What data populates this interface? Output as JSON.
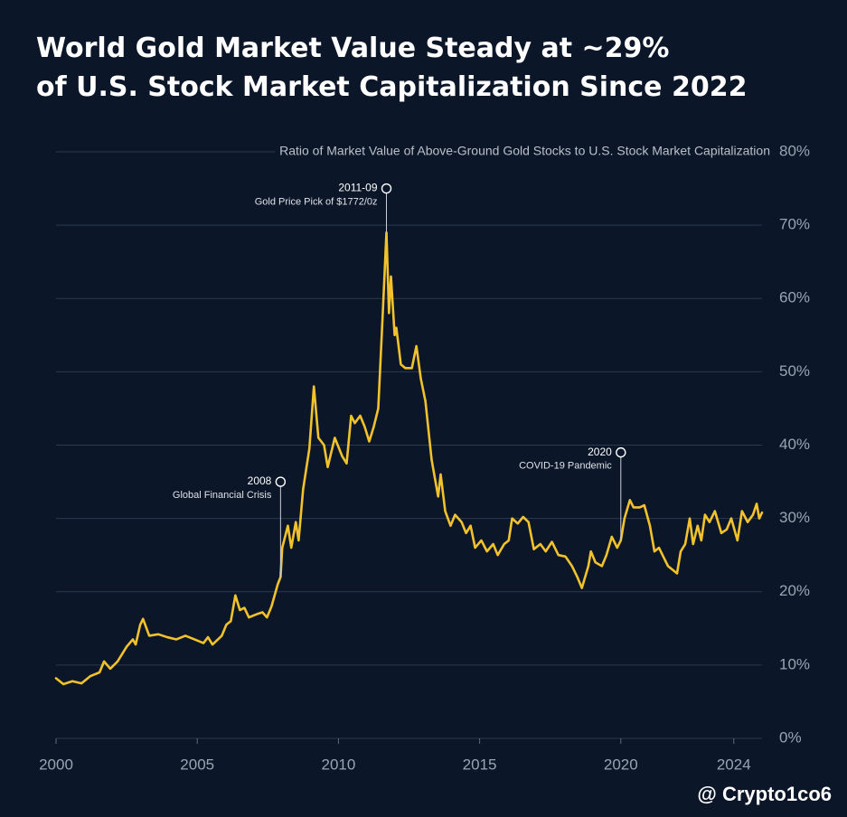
{
  "chart_data": {
    "type": "line",
    "title": [
      "World Gold Market Value Steady at ~29%",
      "of U.S. Stock Market Capitalization Since 2022"
    ],
    "subtitle": "Ratio of Market Value of Above-Ground Gold Stocks to U.S. Stock Market Capitalization",
    "color": "#f2c22c",
    "grid": true,
    "xlim": [
      2000,
      2025
    ],
    "xticks": [
      2000,
      2005,
      2010,
      2015,
      2020,
      2024
    ],
    "ylim": [
      0,
      80
    ],
    "yticks": [
      {
        "value": 0,
        "label": "0%"
      },
      {
        "value": 10,
        "label": "10%"
      },
      {
        "value": 20,
        "label": "20%"
      },
      {
        "value": 30,
        "label": "30%"
      },
      {
        "value": 40,
        "label": "40%"
      },
      {
        "value": 50,
        "label": "50%"
      },
      {
        "value": 60,
        "label": "60%"
      },
      {
        "value": 70,
        "label": "70%"
      },
      {
        "value": 80,
        "label": "80%"
      }
    ],
    "x": [
      2000.0,
      2000.26,
      2000.58,
      2000.9,
      2001.22,
      2001.54,
      2001.7,
      2001.92,
      2002.18,
      2002.5,
      2002.72,
      2002.82,
      2002.98,
      2003.08,
      2003.3,
      2003.62,
      2003.94,
      2004.26,
      2004.58,
      2004.9,
      2005.22,
      2005.38,
      2005.54,
      2005.87,
      2006.03,
      2006.19,
      2006.35,
      2006.51,
      2006.67,
      2006.83,
      2007.15,
      2007.31,
      2007.47,
      2007.63,
      2007.85,
      2007.95,
      2008.01,
      2008.21,
      2008.33,
      2008.49,
      2008.59,
      2008.75,
      2008.97,
      2009.13,
      2009.29,
      2009.49,
      2009.62,
      2009.87,
      2010.13,
      2010.29,
      2010.45,
      2010.58,
      2010.77,
      2010.93,
      2011.09,
      2011.25,
      2011.41,
      2011.57,
      2011.7,
      2011.79,
      2011.86,
      2011.99,
      2012.05,
      2012.21,
      2012.37,
      2012.6,
      2012.76,
      2012.92,
      2013.08,
      2013.3,
      2013.53,
      2013.62,
      2013.78,
      2013.97,
      2014.13,
      2014.36,
      2014.52,
      2014.68,
      2014.84,
      2015.06,
      2015.26,
      2015.48,
      2015.64,
      2015.87,
      2016.03,
      2016.15,
      2016.35,
      2016.54,
      2016.73,
      2016.92,
      2017.15,
      2017.34,
      2017.56,
      2017.79,
      2018.04,
      2018.27,
      2018.46,
      2018.62,
      2018.85,
      2018.94,
      2019.1,
      2019.33,
      2019.49,
      2019.68,
      2019.87,
      2020.0,
      2020.13,
      2020.32,
      2020.45,
      2020.67,
      2020.83,
      2021.03,
      2021.19,
      2021.35,
      2021.54,
      2021.67,
      2021.83,
      2021.99,
      2022.12,
      2022.28,
      2022.44,
      2022.56,
      2022.72,
      2022.85,
      2022.98,
      2023.14,
      2023.33,
      2023.56,
      2023.75,
      2023.91,
      2024.13,
      2024.29,
      2024.49,
      2024.68,
      2024.81,
      2024.9,
      2025.0
    ],
    "values": [
      8.2,
      7.4,
      7.8,
      7.5,
      8.5,
      9.0,
      10.5,
      9.5,
      10.5,
      12.5,
      13.5,
      12.8,
      15.5,
      16.3,
      14.0,
      14.2,
      13.8,
      13.5,
      14.0,
      13.5,
      13.0,
      13.8,
      12.8,
      14.0,
      15.5,
      16.0,
      19.5,
      17.5,
      17.8,
      16.5,
      17.0,
      17.2,
      16.5,
      18.0,
      21.0,
      22.0,
      26.0,
      29.0,
      26.0,
      29.5,
      27.0,
      34.0,
      39.5,
      48.0,
      41.0,
      40.0,
      37.0,
      41.0,
      38.5,
      37.5,
      44.0,
      43.0,
      44.0,
      42.5,
      40.5,
      42.5,
      45.0,
      58.0,
      69.0,
      58.0,
      63.0,
      55.0,
      56.0,
      51.0,
      50.5,
      50.5,
      53.5,
      49.0,
      46.0,
      38.0,
      33.0,
      36.0,
      31.0,
      29.0,
      30.5,
      29.5,
      28.0,
      29.0,
      26.0,
      27.0,
      25.5,
      26.5,
      25.0,
      26.5,
      27.0,
      30.0,
      29.3,
      30.2,
      29.5,
      25.8,
      26.5,
      25.5,
      26.8,
      25.0,
      24.8,
      23.5,
      22.0,
      20.5,
      23.5,
      25.5,
      24.0,
      23.5,
      25.0,
      27.5,
      26.0,
      27.0,
      30.0,
      32.5,
      31.5,
      31.5,
      31.8,
      29.0,
      25.5,
      26.0,
      24.5,
      23.5,
      23.0,
      22.5,
      25.5,
      26.5,
      30.0,
      26.5,
      29.0,
      27.0,
      30.5,
      29.5,
      31.0,
      28.0,
      28.5,
      30.0,
      27.0,
      31.0,
      29.5,
      30.5,
      32.0,
      30.0,
      30.8
    ],
    "annotations": [
      {
        "label": "2008",
        "text": "Global Financial Crisis",
        "x": 2007.95,
        "y": 35
      },
      {
        "label": "2011-09",
        "text": "Gold Price Pick of $1772/0z",
        "x": 2011.7,
        "y": 75
      },
      {
        "label": "2020",
        "text": "COVID-19 Pandemic",
        "x": 2020.0,
        "y": 39
      }
    ],
    "watermark": "@ Crypto1co6"
  }
}
